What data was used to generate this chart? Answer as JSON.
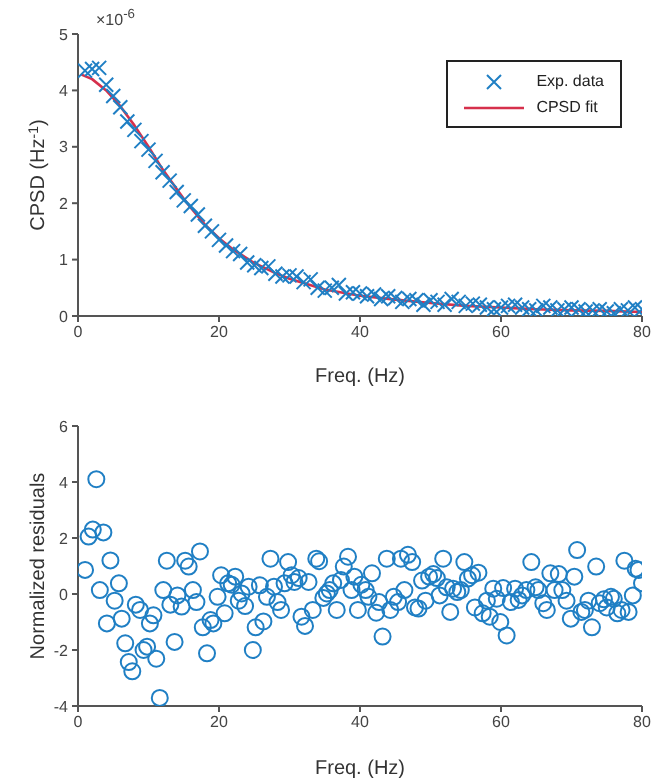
{
  "chart_data": [
    {
      "type": "scatter",
      "xlabel": "Freq. (Hz)",
      "ylabel": "CPSD (Hz$^{-1}$)",
      "annotations": [
        "×10$^{-6}$"
      ],
      "xlim": [
        0,
        80
      ],
      "xticks": [
        0,
        20,
        40,
        60,
        80
      ],
      "ylim": [
        0,
        5
      ],
      "yticks": [
        0,
        1,
        2,
        3,
        4,
        5
      ],
      "grid": false,
      "legend": "top right",
      "series": [
        {
          "name": "Exp. data",
          "marker": "cross",
          "color": "#1f7fc4",
          "x": [
            1,
            2,
            3,
            4,
            5,
            6,
            7,
            8,
            9,
            10,
            11,
            12,
            13,
            14,
            15,
            16,
            17,
            18,
            19,
            20,
            21,
            22,
            23,
            24,
            25,
            26,
            27,
            28,
            29,
            30,
            31,
            32,
            33,
            34,
            35,
            36,
            37,
            38,
            39,
            40,
            41,
            42,
            43,
            44,
            45,
            46,
            47,
            48,
            49,
            50,
            51,
            52,
            53,
            54,
            55,
            56,
            57,
            58,
            59,
            60,
            61,
            62,
            63,
            64,
            65,
            66,
            67,
            68,
            69,
            70,
            71,
            72,
            73,
            74,
            75,
            76,
            77,
            78,
            79,
            80
          ],
          "values": [
            4.35,
            4.38,
            4.4,
            4.1,
            3.9,
            3.7,
            3.45,
            3.3,
            3.1,
            2.95,
            2.75,
            2.55,
            2.4,
            2.2,
            2.05,
            1.95,
            1.8,
            1.6,
            1.5,
            1.35,
            1.25,
            1.15,
            1.1,
            0.95,
            0.9,
            0.85,
            0.88,
            0.75,
            0.7,
            0.72,
            0.7,
            0.6,
            0.65,
            0.5,
            0.45,
            0.5,
            0.55,
            0.4,
            0.42,
            0.4,
            0.35,
            0.38,
            0.3,
            0.35,
            0.32,
            0.25,
            0.3,
            0.28,
            0.2,
            0.28,
            0.25,
            0.2,
            0.3,
            0.25,
            0.18,
            0.22,
            0.2,
            0.15,
            0.12,
            0.15,
            0.18,
            0.2,
            0.15,
            0.12,
            0.1,
            0.18,
            0.15,
            0.1,
            0.12,
            0.15,
            0.12,
            0.08,
            0.1,
            0.12,
            0.08,
            0.05,
            0.12,
            0.1,
            0.15,
            0.12
          ]
        },
        {
          "name": "CPSD fit",
          "type": "line",
          "marker": "none",
          "color": "#d6304c",
          "x": [
            0.5,
            2,
            4,
            6,
            8,
            10,
            12,
            14,
            15,
            16,
            18,
            20,
            22,
            25,
            28,
            30,
            35,
            40,
            45,
            50,
            55,
            60,
            65,
            70,
            75,
            80
          ],
          "values": [
            4.28,
            4.2,
            4.0,
            3.72,
            3.38,
            3.0,
            2.6,
            2.25,
            2.08,
            1.92,
            1.62,
            1.38,
            1.18,
            0.94,
            0.76,
            0.66,
            0.47,
            0.36,
            0.29,
            0.23,
            0.18,
            0.15,
            0.12,
            0.1,
            0.09,
            0.07
          ]
        }
      ]
    },
    {
      "type": "scatter",
      "xlabel": "Freq. (Hz)",
      "ylabel": "Normalized residuals",
      "xlim": [
        0,
        80
      ],
      "xticks": [
        0,
        20,
        40,
        60,
        80
      ],
      "ylim": [
        -4,
        6
      ],
      "yticks": [
        -4,
        -2,
        0,
        2,
        4,
        6
      ],
      "grid": false,
      "legend": false,
      "series": [
        {
          "marker": "circle",
          "color": "#1f7fc4",
          "x": [
            1.0,
            1.5,
            2.1,
            2.6,
            3.1,
            3.6,
            4.1,
            4.6,
            5.2,
            5.8,
            6.2,
            6.7,
            7.2,
            7.7,
            8.2,
            8.8,
            9.3,
            9.8,
            10.2,
            10.7,
            11.1,
            11.6,
            12.1,
            12.6,
            13.1,
            13.7,
            14.1,
            14.7,
            15.2,
            15.7,
            16.3,
            16.8,
            17.3,
            17.7,
            18.3,
            18.8,
            19.2,
            19.8,
            20.3,
            20.8,
            21.3,
            21.8,
            22.3,
            22.8,
            23.2,
            23.7,
            24.2,
            24.8,
            25.2,
            25.8,
            26.3,
            26.8,
            27.3,
            27.8,
            28.3,
            28.8,
            29.3,
            29.8,
            30.3,
            30.7,
            31.3,
            31.7,
            32.2,
            32.7,
            33.3,
            33.8,
            34.2,
            34.8,
            35.3,
            35.7,
            36.2,
            36.7,
            37.3,
            37.7,
            38.3,
            38.8,
            39.2,
            39.7,
            40.2,
            40.8,
            41.2,
            41.7,
            42.3,
            42.7,
            43.2,
            43.8,
            44.3,
            44.8,
            45.4,
            45.8,
            46.3,
            46.8,
            47.4,
            47.8,
            48.3,
            48.8,
            49.3,
            49.8,
            50.4,
            50.9,
            51.3,
            51.8,
            52.3,
            52.8,
            53.2,
            53.8,
            54.3,
            54.8,
            55.3,
            55.9,
            56.3,
            56.8,
            57.4,
            58.0,
            58.4,
            58.9,
            59.4,
            59.9,
            60.3,
            60.8,
            61.4,
            62.0,
            62.5,
            63.0,
            63.6,
            64.3,
            64.9,
            65.3,
            66.0,
            66.5,
            67.0,
            67.6,
            68.2,
            68.7,
            69.3,
            69.9,
            70.4,
            70.8,
            71.4,
            71.9,
            72.4,
            72.9,
            73.5,
            74.0,
            74.6,
            75.0,
            75.6,
            76.0,
            76.5,
            77.1,
            77.5,
            78.1,
            78.7,
            79.1,
            79.5,
            80.0
          ],
          "values": [
            0.86,
            2.05,
            2.3,
            4.1,
            0.14,
            2.2,
            -1.05,
            1.2,
            -0.24,
            0.38,
            -0.88,
            -1.76,
            -2.43,
            -2.76,
            -0.38,
            -0.57,
            -2.0,
            -1.88,
            -1.05,
            -0.76,
            -2.31,
            -3.71,
            0.14,
            1.19,
            -0.38,
            -1.71,
            -0.05,
            -0.45,
            1.19,
            0.98,
            0.14,
            -0.29,
            1.52,
            -1.19,
            -2.12,
            -0.93,
            -1.05,
            -0.1,
            0.67,
            -0.69,
            0.38,
            0.33,
            0.62,
            -0.24,
            0.02,
            -0.43,
            0.26,
            -2.0,
            -1.19,
            0.31,
            -0.98,
            -0.1,
            1.26,
            0.26,
            -0.29,
            -0.57,
            0.38,
            1.14,
            0.67,
            0.43,
            0.57,
            -0.81,
            -1.14,
            0.43,
            -0.57,
            1.26,
            1.17,
            -0.14,
            0.02,
            0.14,
            0.38,
            -0.57,
            0.5,
            0.98,
            1.33,
            0.14,
            0.62,
            -0.57,
            0.33,
            0.14,
            -0.1,
            0.74,
            -0.67,
            -0.29,
            -1.52,
            1.26,
            -0.57,
            -0.1,
            -0.29,
            1.26,
            0.14,
            1.4,
            1.14,
            -0.48,
            -0.52,
            0.48,
            -0.24,
            0.62,
            0.71,
            0.57,
            -0.05,
            1.26,
            0.24,
            -0.64,
            0.19,
            0.07,
            0.14,
            1.14,
            0.55,
            0.67,
            -0.48,
            0.76,
            -0.69,
            -0.24,
            -0.81,
            0.19,
            -0.17,
            -1.0,
            0.21,
            -1.48,
            -0.29,
            0.19,
            -0.21,
            -0.05,
            0.14,
            1.14,
            0.24,
            0.14,
            -0.33,
            -0.57,
            0.74,
            0.14,
            0.71,
            0.14,
            -0.24,
            -0.88,
            0.62,
            1.57,
            -0.64,
            -0.57,
            -0.24,
            -1.19,
            0.98,
            -0.33,
            -0.19,
            -0.48,
            -0.1,
            -0.17,
            -0.69,
            -0.57,
            1.19,
            -0.64,
            -0.05,
            0.9,
            0.86,
            0.38
          ]
        }
      ]
    }
  ]
}
